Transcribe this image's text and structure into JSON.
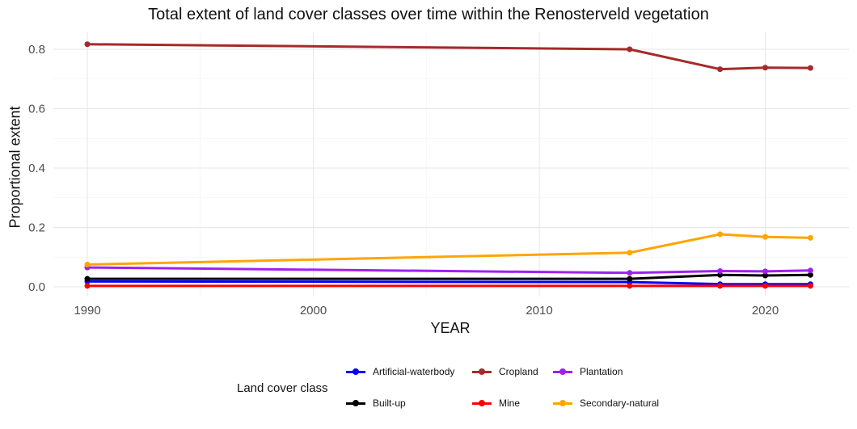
{
  "chart_data": {
    "type": "line",
    "title": "Total extent of land cover classes over time within the Renosterveld vegetation",
    "xlabel": "YEAR",
    "ylabel": "Proportional extent",
    "xlim": [
      1990,
      2022
    ],
    "ylim": [
      0,
      0.84
    ],
    "xticks": [
      1990,
      2000,
      2010,
      2020
    ],
    "yticks": [
      0.0,
      0.2,
      0.4,
      0.6,
      0.8
    ],
    "ytick_labels": [
      "0.0",
      "0.2",
      "0.4",
      "0.6",
      "0.8"
    ],
    "grid": true,
    "legend_position": "bottom",
    "legend_title": "Land cover class",
    "x": [
      1990,
      2014,
      2018,
      2020,
      2022
    ],
    "series": [
      {
        "name": "Artificial-waterbody",
        "color": "#0000FF",
        "values": [
          0.018,
          0.016,
          0.009,
          0.009,
          0.009
        ]
      },
      {
        "name": "Built-up",
        "color": "#000000",
        "values": [
          0.027,
          0.027,
          0.04,
          0.038,
          0.04
        ]
      },
      {
        "name": "Cropland",
        "color": "#A52A2A",
        "values": [
          0.817,
          0.8,
          0.733,
          0.738,
          0.737
        ]
      },
      {
        "name": "Mine",
        "color": "#FF0000",
        "values": [
          0.003,
          0.003,
          0.003,
          0.003,
          0.003
        ]
      },
      {
        "name": "Plantation",
        "color": "#A020F0",
        "values": [
          0.065,
          0.047,
          0.053,
          0.052,
          0.055
        ]
      },
      {
        "name": "Secondary-natural",
        "color": "#FFA500",
        "values": [
          0.075,
          0.115,
          0.177,
          0.168,
          0.165
        ]
      }
    ]
  }
}
